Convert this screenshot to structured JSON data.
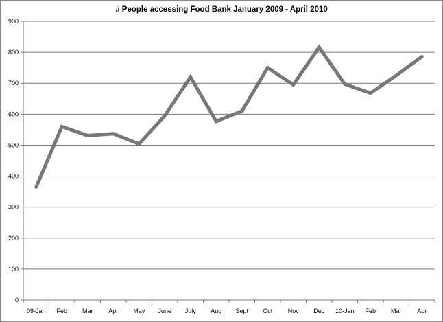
{
  "chart_data": {
    "type": "line",
    "title": "# People accessing Food Bank January 2009 - April 2010",
    "categories": [
      "09-Jan",
      "Feb",
      "Mar",
      "Apr",
      "May",
      "June",
      "July",
      "Aug",
      "Sept",
      "Oct",
      "Nov",
      "Dec",
      "10-Jan",
      "Feb",
      "Mar",
      "Apr"
    ],
    "series": [
      {
        "values": [
          365,
          560,
          531,
          537,
          504,
          595,
          720,
          577,
          610,
          750,
          695,
          816,
          697,
          668,
          725,
          786
        ]
      }
    ],
    "yticks": [
      0,
      100,
      200,
      300,
      400,
      500,
      600,
      700,
      800,
      900
    ],
    "ylim": [
      0,
      900
    ],
    "grid": true,
    "legend": "none",
    "line_color": "#777777"
  }
}
